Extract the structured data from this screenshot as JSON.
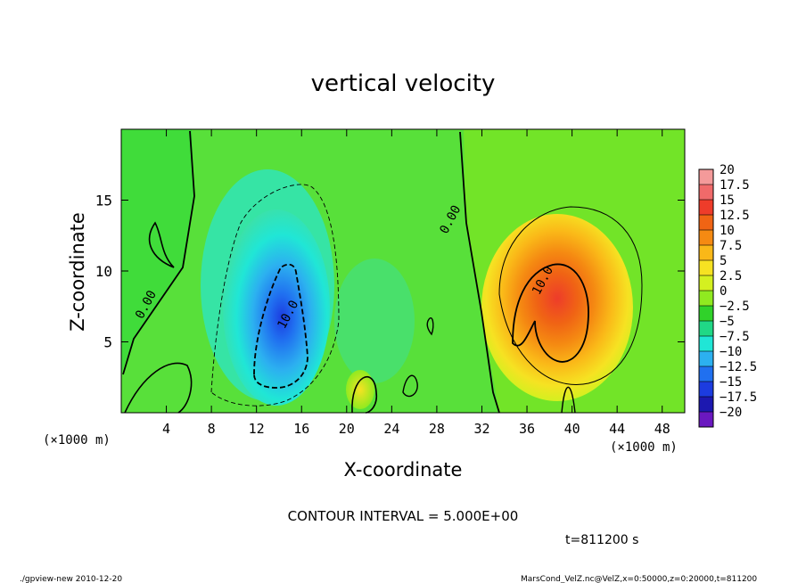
{
  "chart_data": {
    "type": "heatmap",
    "title": "vertical velocity",
    "xlabel": "X-coordinate",
    "ylabel": "Z-coordinate",
    "x_unit_left": "(×1000 m)",
    "x_unit_right": "(×1000 m)",
    "xlim": [
      0,
      50
    ],
    "ylim": [
      0,
      20
    ],
    "x_ticks": [
      "4",
      "8",
      "12",
      "16",
      "20",
      "24",
      "28",
      "32",
      "36",
      "40",
      "44",
      "48"
    ],
    "y_ticks": [
      "5",
      "10",
      "15"
    ],
    "contour_interval_label": "CONTOUR INTERVAL = 5.000E+00",
    "time_label": "t=811200 s",
    "contour_labels": [
      {
        "text": "0.00",
        "x": 2.5,
        "z": 7.5
      },
      {
        "text": "0.00",
        "x": 29.5,
        "z": 13.5
      },
      {
        "text": "10.0",
        "x": 15.1,
        "z": 6.8
      },
      {
        "text": "10.0",
        "x": 37.7,
        "z": 9.2
      }
    ],
    "colorbar": {
      "levels": [
        "20",
        "17.5",
        "15",
        "12.5",
        "10",
        "7.5",
        "5",
        "2.5",
        "0",
        "−2.5",
        "−5",
        "−7.5",
        "−10",
        "−12.5",
        "−15",
        "−17.5",
        "−20"
      ],
      "colors": [
        "#f49a9a",
        "#f06a6a",
        "#ee3c2a",
        "#f06414",
        "#f58a12",
        "#fab818",
        "#f6e222",
        "#d4f020",
        "#90ea20",
        "#30d22a",
        "#20d886",
        "#20e6d6",
        "#2cb0f0",
        "#2070f0",
        "#1c3ce0",
        "#1c18b0",
        "#6a18c0"
      ]
    },
    "features": [
      {
        "name": "updraft",
        "x": 38.2,
        "z": 8.5,
        "peak": 13
      },
      {
        "name": "downdraft",
        "x": 14.2,
        "z": 5.5,
        "peak": -12
      }
    ]
  },
  "footer": {
    "left": "./gpview-new  2010-12-20",
    "right": "MarsCond_VelZ.nc@VelZ,x=0:50000,z=0:20000,t=811200"
  }
}
